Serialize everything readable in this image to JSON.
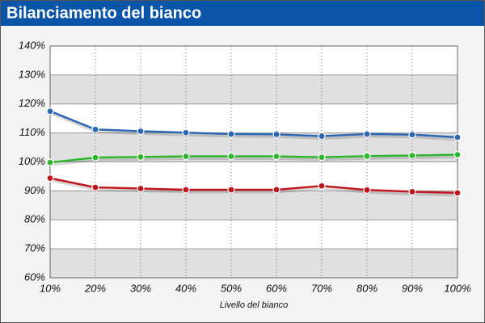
{
  "chart_data": {
    "type": "line",
    "title": "Bilanciamento del bianco",
    "x_label": "Livello del bianco",
    "categories": [
      "10%",
      "20%",
      "30%",
      "40%",
      "50%",
      "60%",
      "70%",
      "80%",
      "90%",
      "100%"
    ],
    "series": [
      {
        "color": "#2a66b1",
        "values": [
          117.5,
          111.2,
          110.6,
          110.1,
          109.6,
          109.5,
          108.9,
          109.6,
          109.4,
          108.5
        ]
      },
      {
        "color": "#2db52d",
        "values": [
          99.8,
          101.5,
          101.7,
          101.9,
          101.9,
          101.9,
          101.6,
          102.0,
          102.2,
          102.5
        ]
      },
      {
        "color": "#c0161e",
        "values": [
          94.4,
          91.2,
          90.8,
          90.4,
          90.4,
          90.4,
          91.7,
          90.3,
          89.7,
          89.3
        ]
      }
    ],
    "ylim": [
      60,
      140
    ],
    "yticks": [
      {
        "value": 60,
        "label": "60%"
      },
      {
        "value": 70,
        "label": "70%"
      },
      {
        "value": 80,
        "label": "80%"
      },
      {
        "value": 90,
        "label": "90%"
      },
      {
        "value": 100,
        "label": "100%"
      },
      {
        "value": 110,
        "label": "110%"
      },
      {
        "value": 120,
        "label": "120%"
      },
      {
        "value": 130,
        "label": "130%"
      },
      {
        "value": 140,
        "label": "140%"
      }
    ],
    "grid": true
  }
}
